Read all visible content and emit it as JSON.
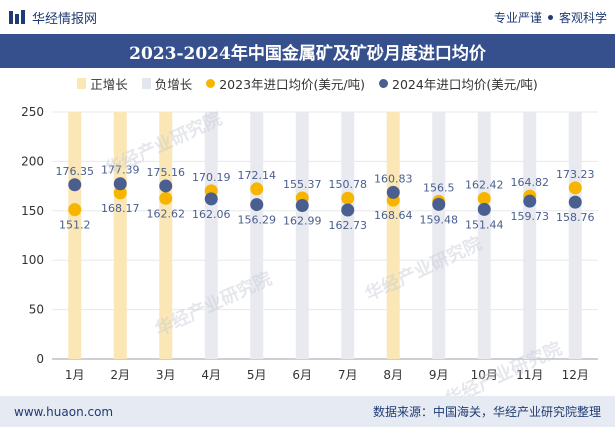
{
  "header": {
    "brand": "华经情报网",
    "slogan_left": "专业严谨",
    "slogan_right": "客观科学"
  },
  "title": "2023-2024年中国金属矿及矿砂月度进口均价",
  "legend": [
    {
      "label": "正增长",
      "color": "#fbe7b5",
      "shape": "rect"
    },
    {
      "label": "负增长",
      "color": "#e3e6ee",
      "shape": "rect"
    },
    {
      "label": "2023年进口均价(美元/吨)",
      "color": "#f7b500",
      "shape": "dot"
    },
    {
      "label": "2024年进口均价(美元/吨)",
      "color": "#4a5f8f",
      "shape": "dot"
    }
  ],
  "chart_data": {
    "type": "scatter",
    "categories": [
      "1月",
      "2月",
      "3月",
      "4月",
      "5月",
      "6月",
      "7月",
      "8月",
      "9月",
      "10月",
      "11月",
      "12月"
    ],
    "series": [
      {
        "name": "2023年进口均价(美元/吨)",
        "values": [
          151.2,
          168.17,
          162.62,
          170.19,
          172.14,
          162.99,
          162.73,
          160.83,
          159.48,
          162.42,
          164.82,
          173.23
        ],
        "color": "#f7b500"
      },
      {
        "name": "2024年进口均价(美元/吨)",
        "values": [
          176.35,
          177.39,
          175.16,
          162.06,
          156.29,
          155.37,
          150.78,
          168.64,
          156.5,
          151.44,
          159.73,
          158.76
        ],
        "color": "#4a5f8f"
      }
    ],
    "growth": [
      "positive",
      "positive",
      "positive",
      "negative",
      "negative",
      "negative",
      "negative",
      "positive",
      "negative",
      "negative",
      "negative",
      "negative"
    ],
    "ylim": [
      0,
      250
    ],
    "yticks": [
      0,
      50,
      100,
      150,
      200,
      250
    ],
    "data_labels": [
      {
        "top": "176.35",
        "bottom": "151.2"
      },
      {
        "top": "177.39",
        "bottom": "168.17"
      },
      {
        "top": "175.16",
        "bottom": "162.62"
      },
      {
        "top": "170.19",
        "bottom": "162.06"
      },
      {
        "top": "172.14",
        "bottom": "156.29"
      },
      {
        "top": "155.37",
        "bottom": "162.99"
      },
      {
        "top": "150.78",
        "bottom": "162.73"
      },
      {
        "top": "160.83",
        "bottom": "168.64"
      },
      {
        "top": "156.5",
        "bottom": "159.48"
      },
      {
        "top": "162.42",
        "bottom": "151.44"
      },
      {
        "top": "164.82",
        "bottom": "159.73"
      },
      {
        "top": "173.23",
        "bottom": "158.76"
      }
    ]
  },
  "watermark": "华经产业研究院",
  "footer": {
    "url": "www.huaon.com",
    "source": "数据来源：中国海关，华经产业研究院整理"
  }
}
